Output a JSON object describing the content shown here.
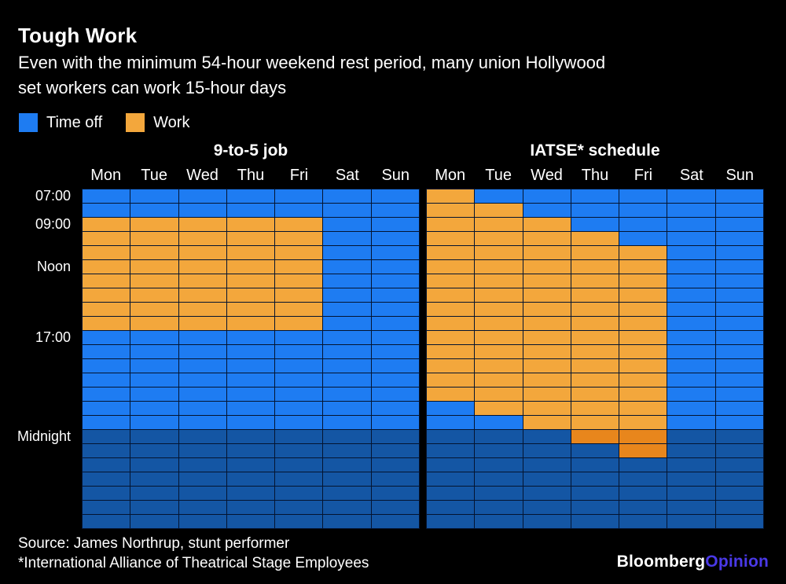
{
  "title": "Tough Work",
  "subtitle_lines": [
    "Even with the minimum 54-hour weekend rest period, many union Hollywood",
    "set workers can work 15-hour days"
  ],
  "legend": [
    {
      "label": "Time off",
      "color": "#1e7cf2"
    },
    {
      "label": "Work",
      "color": "#f3a73c"
    }
  ],
  "colors": {
    "background": "#000000",
    "text": "#ffffff",
    "time_off": "#1e7cf2",
    "work": "#f3a73c",
    "time_off_after_midnight": "#1456a4",
    "work_after_midnight": "#e8861c",
    "grid_line": "#041430",
    "brand_opinion": "#4a39e8"
  },
  "chart_data": [
    {
      "type": "heatmap",
      "title": "9-to-5 job",
      "columns": [
        "Mon",
        "Tue",
        "Wed",
        "Thu",
        "Fri",
        "Sat",
        "Sun"
      ],
      "row_start_hour": 7,
      "row_count": 24,
      "midnight_row": 17,
      "row_labels": [
        {
          "label": "07:00",
          "row": 0
        },
        {
          "label": "09:00",
          "row": 2
        },
        {
          "label": "Noon",
          "row": 5
        },
        {
          "label": "17:00",
          "row": 10
        },
        {
          "label": "Midnight",
          "row": 17
        }
      ],
      "work_hours": {
        "Mon": [
          9,
          17
        ],
        "Tue": [
          9,
          17
        ],
        "Wed": [
          9,
          17
        ],
        "Thu": [
          9,
          17
        ],
        "Fri": [
          9,
          17
        ],
        "Sat": null,
        "Sun": null
      }
    },
    {
      "type": "heatmap",
      "title": "IATSE* schedule",
      "columns": [
        "Mon",
        "Tue",
        "Wed",
        "Thu",
        "Fri",
        "Sat",
        "Sun"
      ],
      "row_start_hour": 7,
      "row_count": 24,
      "midnight_row": 17,
      "work_hours": {
        "Mon": [
          7,
          22
        ],
        "Tue": [
          8,
          23
        ],
        "Wed": [
          9,
          24
        ],
        "Thu": [
          10,
          25
        ],
        "Fri": [
          11,
          26
        ],
        "Sat": null,
        "Sun": null
      }
    }
  ],
  "source": "Source: James Northrup, stunt performer",
  "footnote": "*International Alliance of Theatrical Stage Employees",
  "brand": {
    "main": "Bloomberg",
    "suffix": "Opinion"
  }
}
